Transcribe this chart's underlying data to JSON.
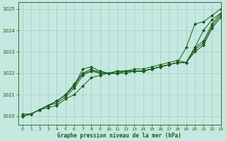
{
  "xlabel": "Graphe pression niveau de la mer (hPa)",
  "xlim": [
    -0.5,
    23
  ],
  "ylim": [
    1019.6,
    1025.3
  ],
  "yticks": [
    1020,
    1021,
    1022,
    1023,
    1024,
    1025
  ],
  "xticks": [
    0,
    1,
    2,
    3,
    4,
    5,
    6,
    7,
    8,
    9,
    10,
    11,
    12,
    13,
    14,
    15,
    16,
    17,
    18,
    19,
    20,
    21,
    22,
    23
  ],
  "bg_color": "#c5e8e0",
  "grid_color": "#9ecfc5",
  "line_color": "#1a5c1a",
  "figsize": [
    3.2,
    2.0
  ],
  "dpi": 100,
  "series": [
    [
      1020.1,
      1020.1,
      1020.3,
      1020.4,
      1020.5,
      1020.8,
      1021.0,
      1021.4,
      1021.8,
      1021.9,
      1022.0,
      1022.0,
      1022.0,
      1022.1,
      1022.1,
      1022.2,
      1022.3,
      1022.4,
      1022.5,
      1023.2,
      1024.3,
      1024.4,
      1024.7,
      1025.0
    ],
    [
      1020.0,
      1020.1,
      1020.3,
      1020.5,
      1020.6,
      1020.9,
      1021.3,
      1021.9,
      1022.1,
      1022.0,
      1022.0,
      1022.0,
      1022.1,
      1022.1,
      1022.1,
      1022.2,
      1022.3,
      1022.4,
      1022.5,
      1022.5,
      1023.2,
      1024.0,
      1024.5,
      1024.8
    ],
    [
      1020.0,
      1020.1,
      1020.3,
      1020.5,
      1020.7,
      1021.0,
      1021.4,
      1022.2,
      1022.3,
      1022.1,
      1022.0,
      1022.1,
      1022.1,
      1022.1,
      1022.1,
      1022.2,
      1022.3,
      1022.4,
      1022.5,
      1022.5,
      1023.2,
      1023.5,
      1024.3,
      1024.8
    ],
    [
      1020.0,
      1020.1,
      1020.3,
      1020.5,
      1020.7,
      1021.0,
      1021.4,
      1022.0,
      1022.1,
      1022.1,
      1022.0,
      1022.1,
      1022.1,
      1022.2,
      1022.2,
      1022.3,
      1022.4,
      1022.5,
      1022.6,
      1022.5,
      1023.1,
      1023.4,
      1024.2,
      1024.7
    ],
    [
      1020.0,
      1020.1,
      1020.3,
      1020.5,
      1020.7,
      1021.0,
      1021.5,
      1022.0,
      1022.2,
      1022.0,
      1022.0,
      1022.0,
      1022.1,
      1022.1,
      1022.1,
      1022.2,
      1022.3,
      1022.4,
      1022.5,
      1022.5,
      1023.0,
      1023.3,
      1024.1,
      1024.6
    ]
  ]
}
